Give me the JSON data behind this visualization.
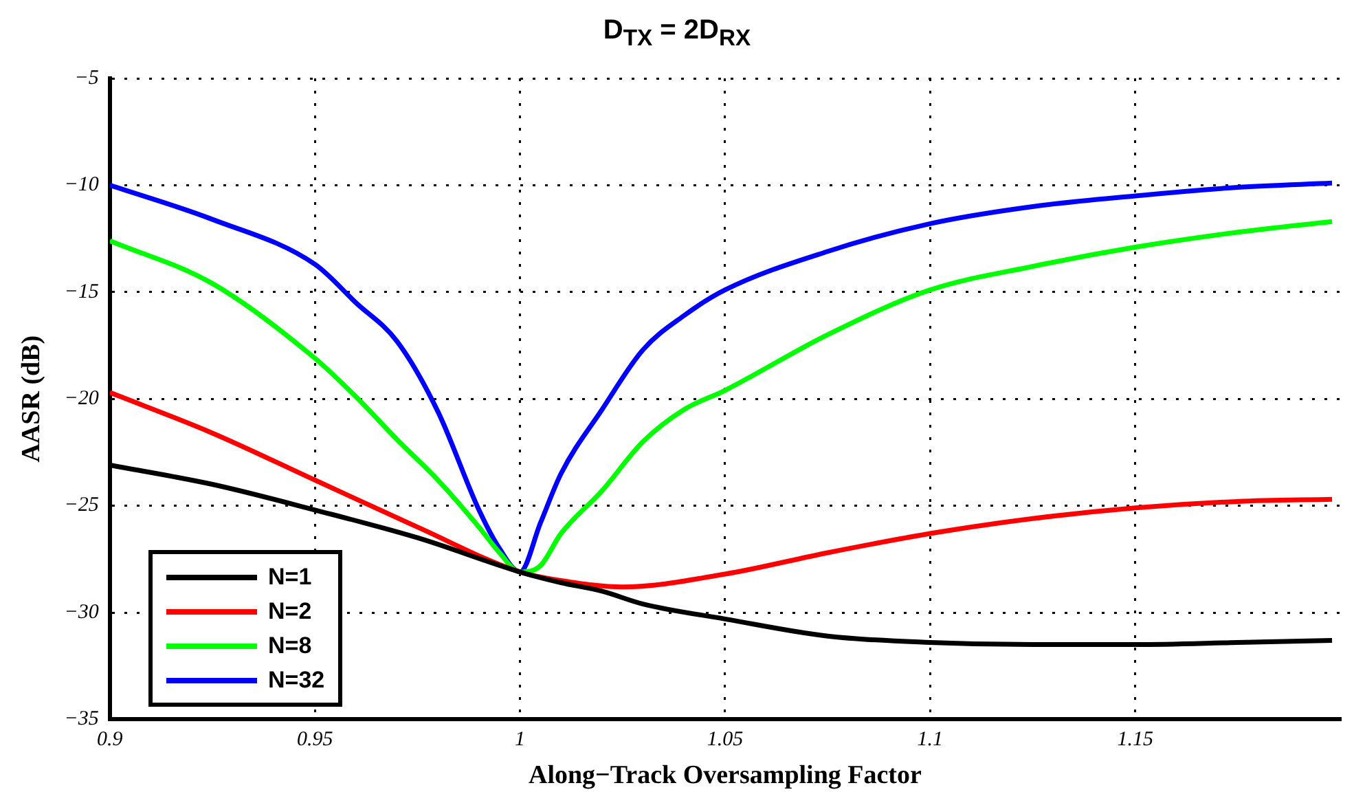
{
  "chart_data": {
    "type": "line",
    "title": "D$_{TX}$ = 2D$_{RX}$",
    "xlabel": "Along−Track Oversampling Factor",
    "ylabel": "AASR (dB)",
    "xlim": [
      0.9,
      1.2
    ],
    "xticks": [
      0.9,
      0.95,
      1,
      1.05,
      1.1,
      1.15
    ],
    "ylim": [
      -35,
      -5
    ],
    "yticks": [
      -35,
      -30,
      -25,
      -20,
      -15,
      -10,
      -5
    ],
    "grid": true,
    "legend": "bottom left",
    "line_style": "solid",
    "marker": "none",
    "series": [
      {
        "name": "N=1",
        "color": "#000000",
        "x": [
          0.9,
          0.925,
          0.95,
          0.975,
          1,
          1.01,
          1.02,
          1.03,
          1.05,
          1.075,
          1.1,
          1.125,
          1.15,
          1.175,
          1.198
        ],
        "values": [
          -23.1,
          -24.0,
          -25.2,
          -26.5,
          -28.1,
          -28.6,
          -29.0,
          -29.6,
          -30.3,
          -31.1,
          -31.4,
          -31.5,
          -31.5,
          -31.4,
          -31.3
        ]
      },
      {
        "name": "N=2",
        "color": "#ff0000",
        "x": [
          0.9,
          0.925,
          0.95,
          0.975,
          1,
          1.01,
          1.025,
          1.05,
          1.075,
          1.1,
          1.125,
          1.15,
          1.175,
          1.198
        ],
        "values": [
          -19.7,
          -21.6,
          -23.8,
          -26.0,
          -28.1,
          -28.5,
          -28.8,
          -28.2,
          -27.2,
          -26.3,
          -25.6,
          -25.1,
          -24.8,
          -24.7
        ]
      },
      {
        "name": "N=8",
        "color": "#00ff00",
        "x": [
          0.9,
          0.925,
          0.95,
          0.96,
          0.97,
          0.98,
          0.99,
          0.995,
          1,
          1.005,
          1.01,
          1.02,
          1.03,
          1.04,
          1.05,
          1.075,
          1.1,
          1.125,
          1.15,
          1.175,
          1.198
        ],
        "values": [
          -12.6,
          -14.6,
          -18.1,
          -19.9,
          -21.9,
          -23.8,
          -26.0,
          -27.2,
          -28.1,
          -27.8,
          -26.3,
          -24.3,
          -22.0,
          -20.5,
          -19.6,
          -17.0,
          -14.9,
          -13.8,
          -12.9,
          -12.2,
          -11.7
        ]
      },
      {
        "name": "N=32",
        "color": "#0000ff",
        "x": [
          0.9,
          0.925,
          0.95,
          0.96,
          0.97,
          0.98,
          0.99,
          0.995,
          1,
          1.005,
          1.01,
          1.02,
          1.03,
          1.04,
          1.05,
          1.075,
          1.1,
          1.125,
          1.15,
          1.175,
          1.198
        ],
        "values": [
          -10,
          -11.6,
          -13.7,
          -15.5,
          -17.3,
          -20.6,
          -25.2,
          -27.0,
          -28.1,
          -25.8,
          -23.5,
          -20.5,
          -17.7,
          -16.1,
          -14.9,
          -13.1,
          -11.8,
          -11.0,
          -10.5,
          -10.1,
          -9.9
        ]
      }
    ]
  }
}
